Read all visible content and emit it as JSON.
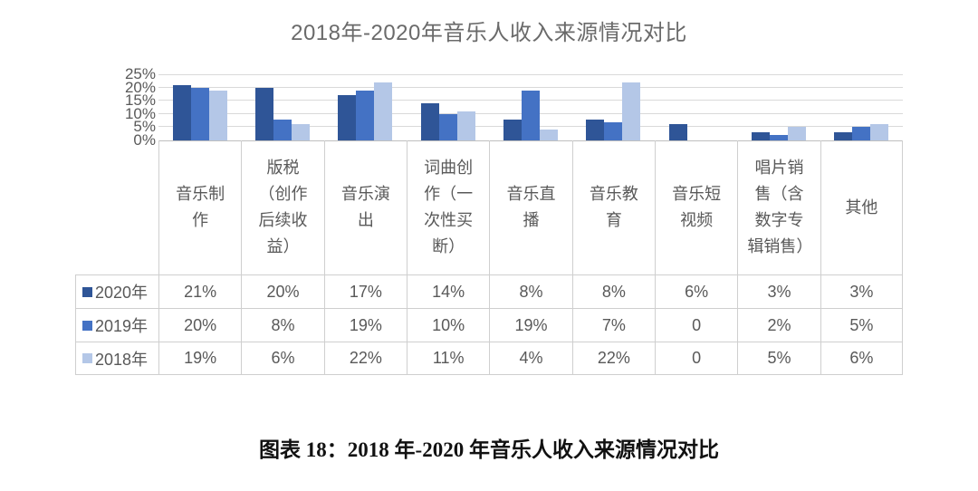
{
  "chart_data": {
    "type": "bar",
    "title": "2018年-2020年音乐人收入来源情况对比",
    "categories": [
      "音乐制作",
      "版税（创作后续收益）",
      "音乐演出",
      "词曲创作（一次性买断）",
      "音乐直播",
      "音乐教育",
      "音乐短视频",
      "唱片销售（含数字专辑销售）",
      "其他"
    ],
    "series": [
      {
        "name": "2020年",
        "color": "#2F5597",
        "values": [
          21,
          20,
          17,
          14,
          8,
          8,
          6,
          3,
          3
        ]
      },
      {
        "name": "2019年",
        "color": "#4472C4",
        "values": [
          20,
          8,
          19,
          10,
          19,
          7,
          0,
          2,
          5
        ]
      },
      {
        "name": "2018年",
        "color": "#B4C7E7",
        "values": [
          19,
          6,
          22,
          11,
          4,
          22,
          0,
          5,
          6
        ]
      }
    ],
    "xlabel": "",
    "ylabel": "",
    "ylim": [
      0,
      25
    ],
    "y_ticks": [
      "0%",
      "5%",
      "10%",
      "15%",
      "20%",
      "25%"
    ],
    "grid": true,
    "legend_position": "table-left"
  },
  "table": {
    "rows": [
      {
        "label": "2020年",
        "swatch_color": "#2F5597",
        "cells": [
          "21%",
          "20%",
          "17%",
          "14%",
          "8%",
          "8%",
          "6%",
          "3%",
          "3%"
        ]
      },
      {
        "label": "2019年",
        "swatch_color": "#4472C4",
        "cells": [
          "20%",
          "8%",
          "19%",
          "10%",
          "19%",
          "7%",
          "0",
          "2%",
          "5%"
        ]
      },
      {
        "label": "2018年",
        "swatch_color": "#B4C7E7",
        "cells": [
          "19%",
          "6%",
          "22%",
          "11%",
          "4%",
          "22%",
          "0",
          "5%",
          "6%"
        ]
      }
    ]
  },
  "caption": {
    "text": "图表 18：2018 年-2020 年音乐人收入来源情况对比"
  },
  "colors": {
    "grid": "#D9D9D9",
    "axis": "#BFBFBF",
    "table_border": "#CFCFCF",
    "text": "#595959"
  }
}
